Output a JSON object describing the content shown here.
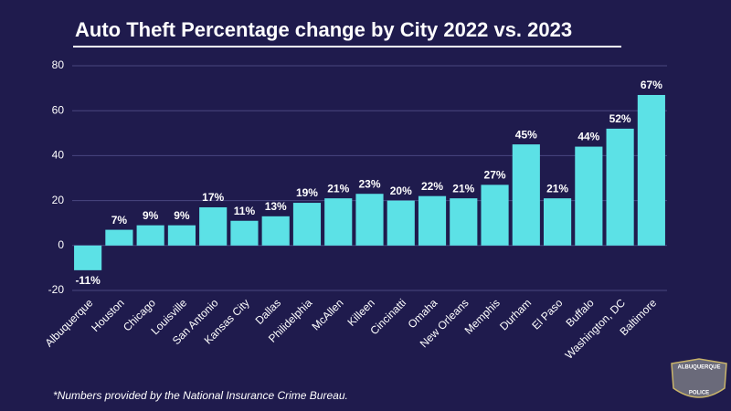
{
  "chart_data": {
    "type": "bar",
    "title": "Auto Theft Percentage change by City 2022 vs. 2023",
    "note": "*Numbers provided by the National Insurance Crime Bureau.",
    "badge": [
      "ALBUQUERQUE",
      "POLICE"
    ],
    "categories": [
      "Albuquerque",
      "Houston",
      "Chicago",
      "Louisville",
      "San Antonio",
      "Kansas City",
      "Dallas",
      "Philidelphia",
      "McAllen",
      "Killeen",
      "Cincinatti",
      "Omaha",
      "New Orleans",
      "Memphis",
      "Durham",
      "El Paso",
      "Buffalo",
      "Washington, DC",
      "Baltimore"
    ],
    "values": [
      -11,
      7,
      9,
      9,
      17,
      11,
      13,
      19,
      21,
      23,
      20,
      22,
      21,
      27,
      45,
      21,
      44,
      52,
      67
    ],
    "value_labels": [
      "-11%",
      "7%",
      "9%",
      "9%",
      "17%",
      "11%",
      "13%",
      "19%",
      "21%",
      "23%",
      "20%",
      "22%",
      "21%",
      "27%",
      "45%",
      "21%",
      "44%",
      "52%",
      "67%"
    ],
    "color": "#5ce1e6",
    "ylim": [
      -20,
      80
    ],
    "yticks": [
      -20,
      0,
      20,
      40,
      60,
      80
    ],
    "grid": true
  }
}
